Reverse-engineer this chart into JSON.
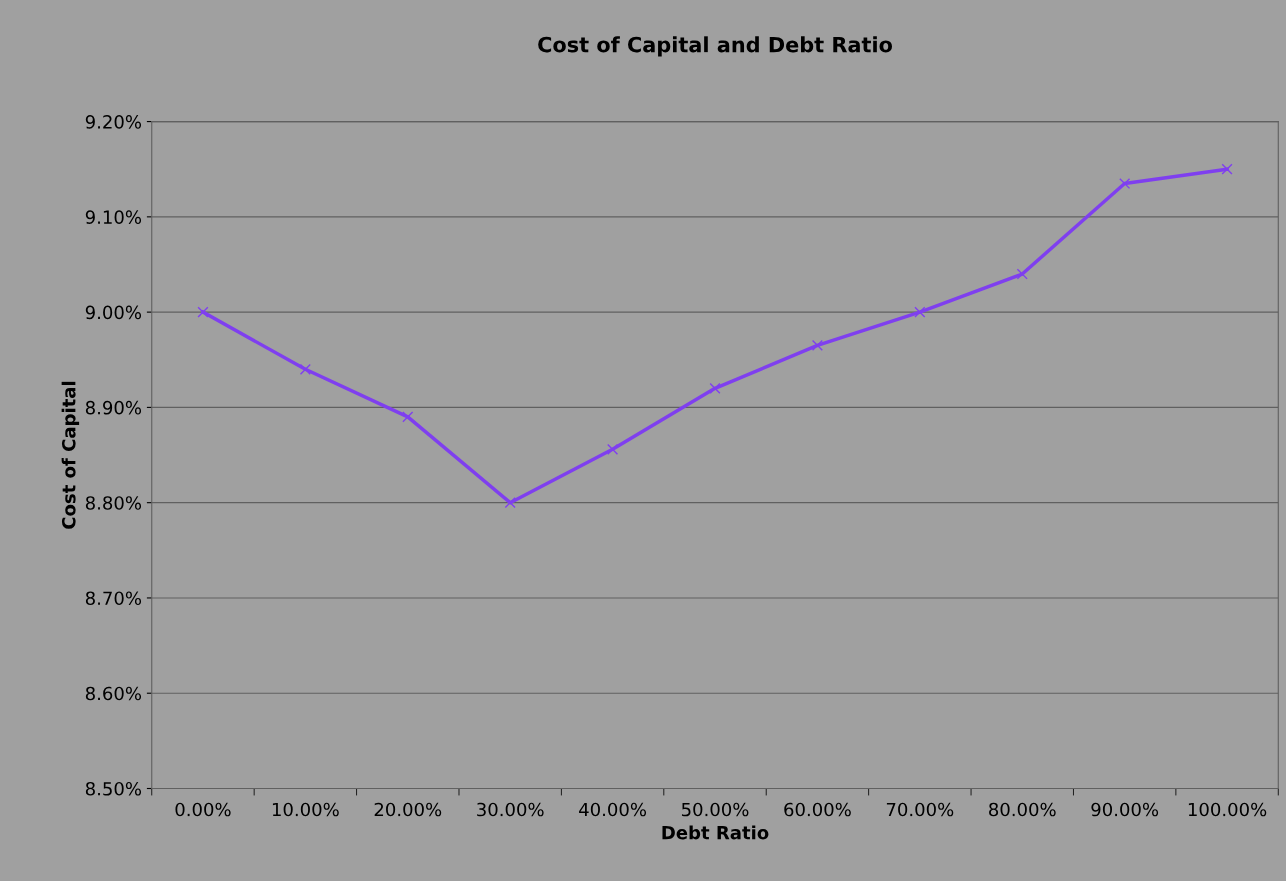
{
  "chart_data": {
    "type": "line",
    "title": "Cost of Capital and Debt Ratio",
    "xlabel": "Debt Ratio",
    "ylabel": "Cost of Capital",
    "categories": [
      "0.00%",
      "10.00%",
      "20.00%",
      "30.00%",
      "40.00%",
      "50.00%",
      "60.00%",
      "70.00%",
      "80.00%",
      "90.00%",
      "100.00%"
    ],
    "series": [
      {
        "color": "#7f3fef",
        "values": [
          9.0,
          8.94,
          8.89,
          8.8,
          8.856,
          8.92,
          8.965,
          9.0,
          9.04,
          9.135,
          9.15
        ]
      }
    ],
    "ylim": [
      8.5,
      9.2
    ],
    "yticks": [
      {
        "value": 8.5,
        "label": "8.50%"
      },
      {
        "value": 8.6,
        "label": "8.60%"
      },
      {
        "value": 8.7,
        "label": "8.70%"
      },
      {
        "value": 8.8,
        "label": "8.80%"
      },
      {
        "value": 8.9,
        "label": "8.90%"
      },
      {
        "value": 9.0,
        "label": "9.00%"
      },
      {
        "value": 9.1,
        "label": "9.10%"
      },
      {
        "value": 9.2,
        "label": "9.20%"
      }
    ],
    "grid": "y",
    "marker": "cross",
    "line_style": "solid",
    "legend": false
  }
}
